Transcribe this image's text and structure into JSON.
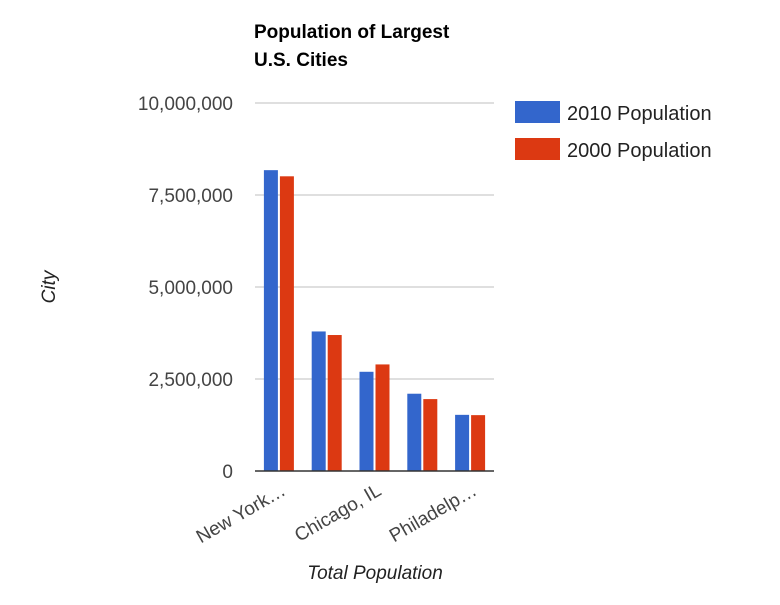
{
  "chart_data": {
    "type": "bar",
    "title_lines": [
      "Population of Largest",
      "U.S. Cities"
    ],
    "xlabel": "Total Population",
    "ylabel": "City",
    "ylim": [
      0,
      10000000
    ],
    "yticks": [
      0,
      2500000,
      5000000,
      7500000,
      10000000
    ],
    "ytick_labels": [
      "0",
      "2,500,000",
      "5,000,000",
      "7,500,000",
      "10,000,000"
    ],
    "categories": [
      "New York…",
      "",
      "Chicago, IL",
      "",
      "Philadelp…"
    ],
    "series": [
      {
        "name": "2010 Population",
        "color": "#3366cc",
        "values": [
          8175000,
          3792000,
          2696000,
          2100000,
          1526000
        ]
      },
      {
        "name": "2000 Population",
        "color": "#dc3912",
        "values": [
          8008000,
          3695000,
          2896000,
          1954000,
          1518000
        ]
      }
    ],
    "grid": true,
    "legend": "right"
  }
}
